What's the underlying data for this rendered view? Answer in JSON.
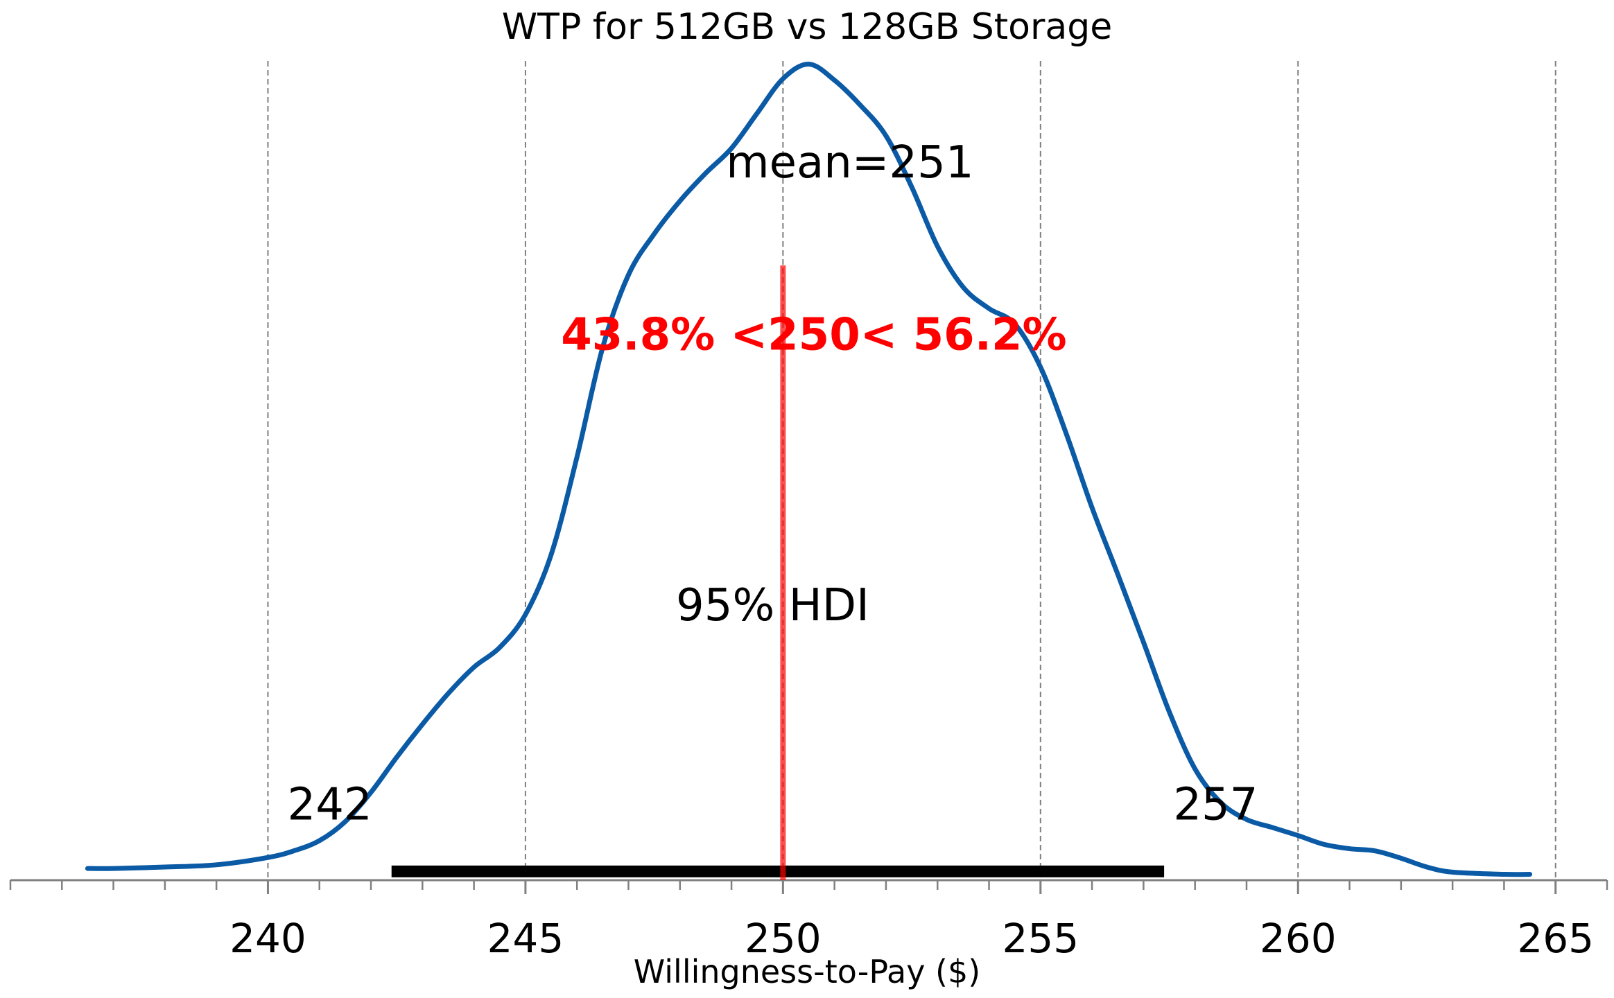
{
  "chart_data": {
    "type": "area",
    "title": "WTP for 512GB vs 128GB Storage",
    "xlabel": "Willingness-to-Pay ($)",
    "ylabel": "",
    "xlim": [
      235,
      266
    ],
    "ylim": [
      0,
      1.07
    ],
    "x_ticks": [
      240,
      245,
      250,
      255,
      260,
      265
    ],
    "x_tick_labels": [
      "240",
      "245",
      "250",
      "255",
      "260",
      "265"
    ],
    "minor_tick_step": 1,
    "grid": "vertical-dashed",
    "series": [
      {
        "color": "#0b5aa5",
        "points": [
          [
            236.5,
            0.016
          ],
          [
            237.0,
            0.016
          ],
          [
            238.0,
            0.018
          ],
          [
            239.0,
            0.021
          ],
          [
            240.0,
            0.031
          ],
          [
            240.5,
            0.04
          ],
          [
            241.0,
            0.054
          ],
          [
            241.5,
            0.08
          ],
          [
            242.0,
            0.12
          ],
          [
            242.5,
            0.168
          ],
          [
            243.0,
            0.213
          ],
          [
            243.5,
            0.255
          ],
          [
            244.0,
            0.291
          ],
          [
            244.5,
            0.318
          ],
          [
            245.0,
            0.363
          ],
          [
            245.5,
            0.445
          ],
          [
            246.0,
            0.578
          ],
          [
            246.5,
            0.728
          ],
          [
            247.0,
            0.827
          ],
          [
            247.5,
            0.883
          ],
          [
            248.0,
            0.928
          ],
          [
            248.5,
            0.966
          ],
          [
            249.0,
            1.0
          ],
          [
            249.5,
            1.048
          ],
          [
            250.0,
            1.095
          ],
          [
            250.5,
            1.115
          ],
          [
            251.0,
            1.093
          ],
          [
            251.5,
            1.059
          ],
          [
            252.0,
            1.017
          ],
          [
            252.5,
            0.947
          ],
          [
            253.0,
            0.866
          ],
          [
            253.5,
            0.81
          ],
          [
            254.0,
            0.781
          ],
          [
            254.5,
            0.76
          ],
          [
            255.0,
            0.701
          ],
          [
            255.5,
            0.61
          ],
          [
            256.0,
            0.509
          ],
          [
            256.5,
            0.418
          ],
          [
            257.0,
            0.325
          ],
          [
            257.5,
            0.23
          ],
          [
            258.0,
            0.152
          ],
          [
            258.5,
            0.106
          ],
          [
            259.0,
            0.083
          ],
          [
            259.5,
            0.072
          ],
          [
            260.0,
            0.061
          ],
          [
            260.5,
            0.049
          ],
          [
            261.0,
            0.043
          ],
          [
            261.5,
            0.04
          ],
          [
            262.0,
            0.03
          ],
          [
            262.5,
            0.018
          ],
          [
            263.0,
            0.011
          ],
          [
            264.0,
            0.008
          ],
          [
            264.5,
            0.008
          ]
        ]
      }
    ],
    "mean_label": "mean=251",
    "reference_value": 250,
    "reference_label": "43.8% <250< 56.2%",
    "reference_color": "#ff0000",
    "hdi": {
      "label": "95% HDI",
      "low": 242.4,
      "high": 257.4,
      "low_label": "242",
      "high_label": "257",
      "color": "#000000"
    }
  }
}
